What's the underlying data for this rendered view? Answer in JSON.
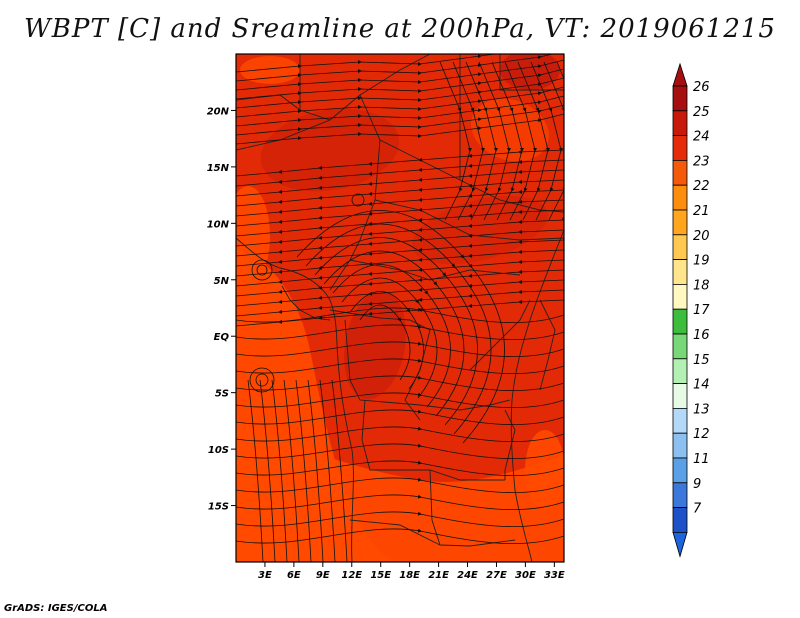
{
  "title": "WBPT [C] and Sreamline at 200hPa, VT: 2019061215",
  "footer": "GrADS: IGES/COLA",
  "map": {
    "lon_range": [
      0,
      34
    ],
    "lat_range": [
      -20,
      25
    ],
    "lon_ticks": [
      {
        "value": 3,
        "label": "3E"
      },
      {
        "value": 6,
        "label": "6E"
      },
      {
        "value": 9,
        "label": "9E"
      },
      {
        "value": 12,
        "label": "12E"
      },
      {
        "value": 15,
        "label": "15E"
      },
      {
        "value": 18,
        "label": "18E"
      },
      {
        "value": 21,
        "label": "21E"
      },
      {
        "value": 24,
        "label": "24E"
      },
      {
        "value": 27,
        "label": "27E"
      },
      {
        "value": 30,
        "label": "30E"
      },
      {
        "value": 33,
        "label": "33E"
      }
    ],
    "lat_ticks": [
      {
        "value": 20,
        "label": "20N"
      },
      {
        "value": 15,
        "label": "15N"
      },
      {
        "value": 10,
        "label": "10N"
      },
      {
        "value": 5,
        "label": "5N"
      },
      {
        "value": 0,
        "label": "EQ"
      },
      {
        "value": -5,
        "label": "5S"
      },
      {
        "value": -10,
        "label": "10S"
      },
      {
        "value": -15,
        "label": "15S"
      }
    ],
    "field_colors": {
      "c23": "#ff4a00",
      "c24": "#e32a06",
      "c25": "#c81e0a",
      "c26": "#b01010"
    }
  },
  "colorbar": {
    "levels": [
      {
        "label": "26",
        "color": "#a50f0f"
      },
      {
        "label": "25",
        "color": "#c81a0a"
      },
      {
        "label": "24",
        "color": "#e52c0a"
      },
      {
        "label": "23",
        "color": "#f55a0a"
      },
      {
        "label": "22",
        "color": "#fd8d0c"
      },
      {
        "label": "21",
        "color": "#ffa51e"
      },
      {
        "label": "20",
        "color": "#ffc850"
      },
      {
        "label": "19",
        "color": "#ffe68c"
      },
      {
        "label": "18",
        "color": "#fff8c0"
      },
      {
        "label": "17",
        "color": "#3cbe3c"
      },
      {
        "label": "16",
        "color": "#78d878"
      },
      {
        "label": "15",
        "color": "#b4f0b4"
      },
      {
        "label": "14",
        "color": "#e6fae6"
      },
      {
        "label": "13",
        "color": "#b4d8f8"
      },
      {
        "label": "12",
        "color": "#8cc0f0"
      },
      {
        "label": "11",
        "color": "#5aa0e6"
      },
      {
        "label": "9",
        "color": "#3c78dc"
      },
      {
        "label": "7",
        "color": "#1e50c8"
      }
    ],
    "top_arrow_color": "#a50f0f",
    "bottom_arrow_color": "#1e64dc"
  }
}
